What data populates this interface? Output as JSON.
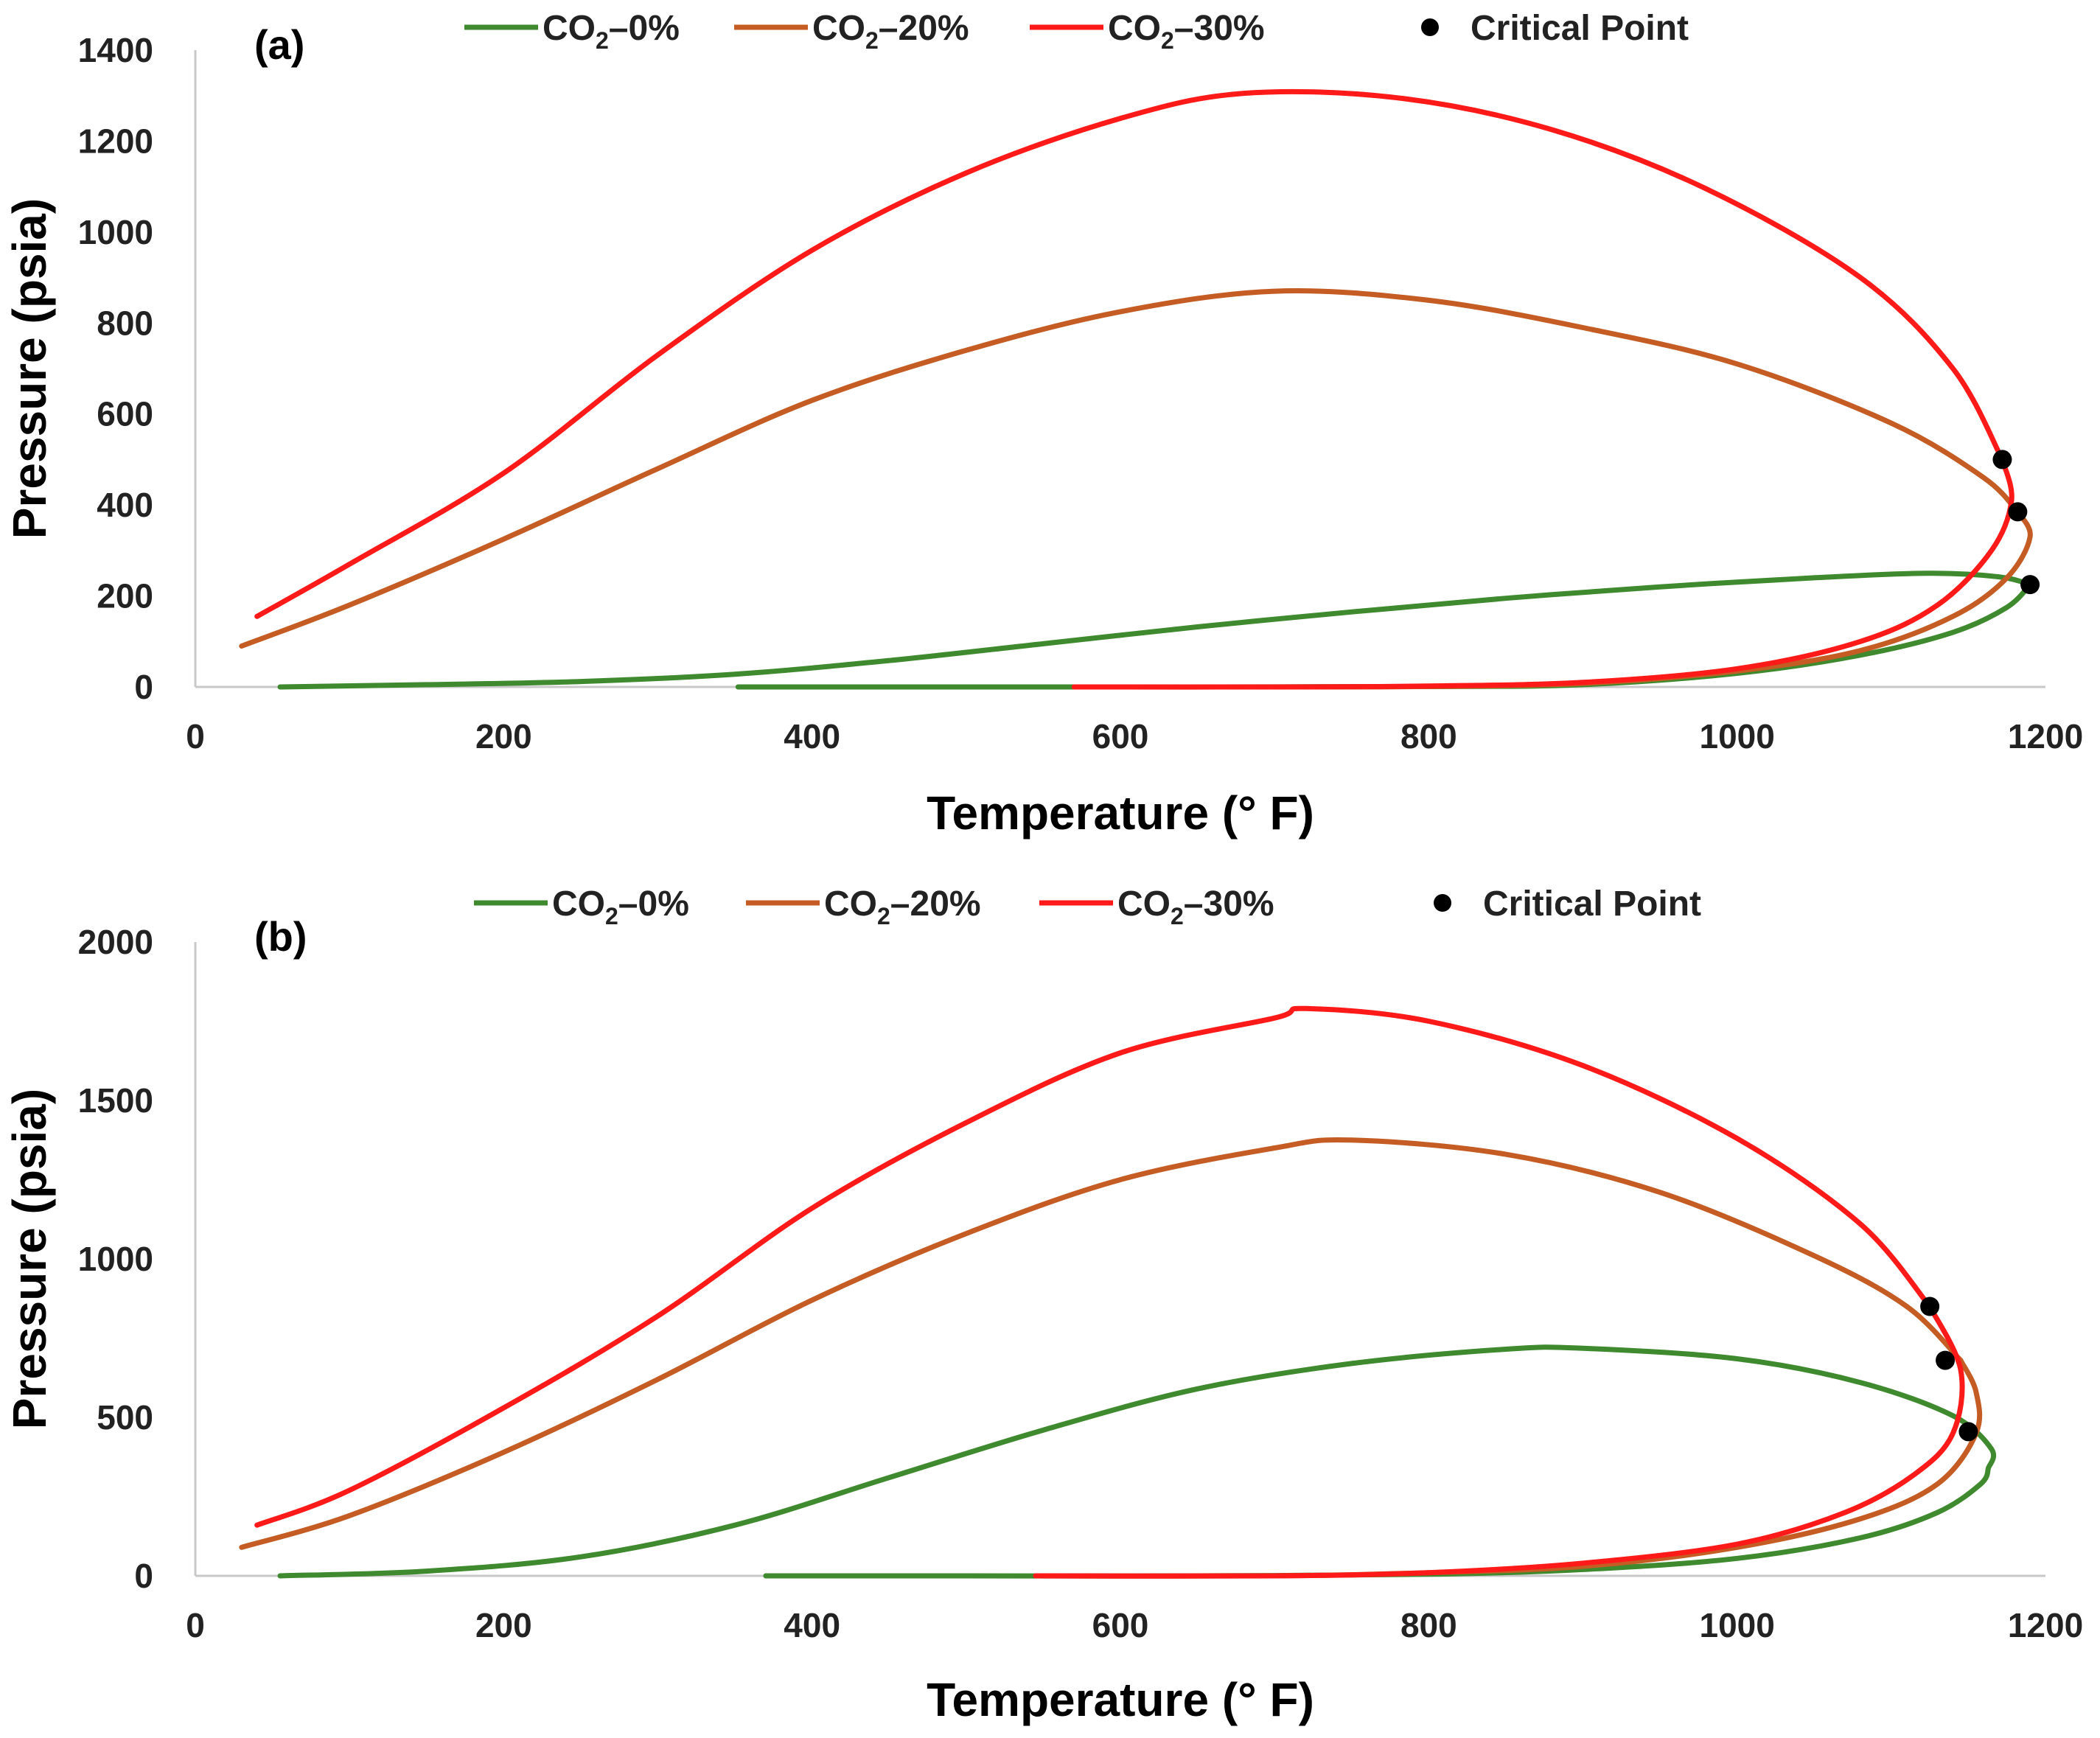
{
  "chart_data": [
    {
      "type": "line",
      "panel_label": "(a)",
      "xlabel": "Temperature (° F)",
      "ylabel": "Pressure (psia)",
      "xlim": [
        0,
        1200
      ],
      "ylim": [
        0,
        1400
      ],
      "x_ticks": [
        0,
        200,
        400,
        600,
        800,
        1000,
        1200
      ],
      "y_ticks": [
        0,
        200,
        400,
        600,
        800,
        1000,
        1200,
        1400
      ],
      "grid": false,
      "legend_position": "top-center",
      "colors": {
        "co2_0": "#3f8a2e",
        "co2_20": "#c45c24",
        "co2_30": "#ff1a1a",
        "critical": "#000000"
      },
      "legend": [
        {
          "key": "co2_0",
          "prefix": "CO",
          "sub": "2",
          "suffix": "–0%"
        },
        {
          "key": "co2_20",
          "prefix": "CO",
          "sub": "2",
          "suffix": "–20%"
        },
        {
          "key": "co2_30",
          "prefix": "CO",
          "sub": "2",
          "suffix": "–30%"
        },
        {
          "key": "critical",
          "prefix": "Critical Point",
          "sub": "",
          "suffix": ""
        }
      ],
      "series": [
        {
          "name": "CO2–0%",
          "key": "co2_0",
          "bubble": [
            [
              55,
              0
            ],
            [
              150,
              5
            ],
            [
              250,
              12
            ],
            [
              350,
              28
            ],
            [
              450,
              58
            ],
            [
              550,
              95
            ],
            [
              650,
              132
            ],
            [
              750,
              165
            ],
            [
              850,
              195
            ],
            [
              950,
              220
            ],
            [
              1050,
              240
            ],
            [
              1125,
              250
            ],
            [
              1170,
              242
            ],
            [
              1190,
              225
            ]
          ],
          "dew": [
            [
              352,
              0
            ],
            [
              500,
              0
            ],
            [
              650,
              0
            ],
            [
              800,
              1
            ],
            [
              900,
              5
            ],
            [
              1000,
              30
            ],
            [
              1080,
              70
            ],
            [
              1140,
              120
            ],
            [
              1175,
              175
            ],
            [
              1190,
              225
            ]
          ]
        },
        {
          "name": "CO2–20%",
          "key": "co2_20",
          "bubble": [
            [
              30,
              90
            ],
            [
              100,
              180
            ],
            [
              200,
              325
            ],
            [
              300,
              480
            ],
            [
              400,
              630
            ],
            [
              500,
              740
            ],
            [
              600,
              825
            ],
            [
              700,
              870
            ],
            [
              800,
              850
            ],
            [
              900,
              790
            ],
            [
              1000,
              710
            ],
            [
              1100,
              580
            ],
            [
              1160,
              460
            ],
            [
              1182,
              385
            ]
          ],
          "dew": [
            [
              570,
              0
            ],
            [
              700,
              0
            ],
            [
              800,
              1
            ],
            [
              900,
              8
            ],
            [
              1000,
              35
            ],
            [
              1080,
              80
            ],
            [
              1140,
              155
            ],
            [
              1175,
              240
            ],
            [
              1190,
              330
            ],
            [
              1182,
              385
            ]
          ]
        },
        {
          "name": "CO2–30%",
          "key": "co2_30",
          "bubble": [
            [
              40,
              155
            ],
            [
              100,
              270
            ],
            [
              200,
              470
            ],
            [
              300,
              730
            ],
            [
              400,
              960
            ],
            [
              500,
              1130
            ],
            [
              600,
              1250
            ],
            [
              680,
              1305
            ],
            [
              780,
              1295
            ],
            [
              880,
              1225
            ],
            [
              980,
              1095
            ],
            [
              1080,
              900
            ],
            [
              1140,
              700
            ],
            [
              1172,
              500
            ]
          ],
          "dew": [
            [
              570,
              0
            ],
            [
              700,
              0
            ],
            [
              800,
              2
            ],
            [
              900,
              10
            ],
            [
              1000,
              40
            ],
            [
              1080,
              100
            ],
            [
              1130,
              180
            ],
            [
              1165,
              300
            ],
            [
              1178,
              410
            ],
            [
              1172,
              500
            ]
          ]
        }
      ],
      "critical_points": [
        [
          1172,
          500
        ],
        [
          1182,
          385
        ],
        [
          1190,
          225
        ]
      ]
    },
    {
      "type": "line",
      "panel_label": "(b)",
      "xlabel": "Temperature (° F)",
      "ylabel": "Pressure (psia)",
      "xlim": [
        0,
        1200
      ],
      "ylim": [
        0,
        2000
      ],
      "x_ticks": [
        0,
        200,
        400,
        600,
        800,
        1000,
        1200
      ],
      "y_ticks": [
        0,
        500,
        1000,
        1500,
        2000
      ],
      "grid": false,
      "legend_position": "top-center",
      "colors": {
        "co2_0": "#3f8a2e",
        "co2_20": "#c45c24",
        "co2_30": "#ff1a1a",
        "critical": "#000000"
      },
      "legend": [
        {
          "key": "co2_0",
          "prefix": "CO",
          "sub": "2",
          "suffix": "–0%"
        },
        {
          "key": "co2_20",
          "prefix": "CO",
          "sub": "2",
          "suffix": "–20%"
        },
        {
          "key": "co2_30",
          "prefix": "CO",
          "sub": "2",
          "suffix": "–30%"
        },
        {
          "key": "critical",
          "prefix": "Critical Point",
          "sub": "",
          "suffix": ""
        }
      ],
      "series": [
        {
          "name": "CO2–0%",
          "key": "co2_0",
          "bubble": [
            [
              55,
              0
            ],
            [
              150,
              15
            ],
            [
              250,
              60
            ],
            [
              350,
              160
            ],
            [
              450,
              310
            ],
            [
              550,
              460
            ],
            [
              650,
              590
            ],
            [
              750,
              670
            ],
            [
              850,
              715
            ],
            [
              900,
              718
            ],
            [
              1000,
              685
            ],
            [
              1080,
              610
            ],
            [
              1140,
              505
            ],
            [
              1165,
              400
            ],
            [
              1163,
              340
            ]
          ],
          "dew": [
            [
              370,
              0
            ],
            [
              500,
              0
            ],
            [
              650,
              0
            ],
            [
              800,
              5
            ],
            [
              900,
              20
            ],
            [
              1000,
              55
            ],
            [
              1080,
              120
            ],
            [
              1130,
              200
            ],
            [
              1158,
              290
            ],
            [
              1163,
              340
            ]
          ]
        },
        {
          "name": "CO2–20%",
          "key": "co2_20",
          "bubble": [
            [
              30,
              90
            ],
            [
              100,
              190
            ],
            [
              200,
              390
            ],
            [
              300,
              620
            ],
            [
              400,
              870
            ],
            [
              500,
              1080
            ],
            [
              600,
              1250
            ],
            [
              700,
              1350
            ],
            [
              750,
              1375
            ],
            [
              850,
              1330
            ],
            [
              950,
              1210
            ],
            [
              1050,
              1010
            ],
            [
              1110,
              850
            ],
            [
              1145,
              680
            ]
          ],
          "dew": [
            [
              545,
              0
            ],
            [
              700,
              0
            ],
            [
              800,
              10
            ],
            [
              900,
              30
            ],
            [
              1000,
              90
            ],
            [
              1080,
              180
            ],
            [
              1130,
              290
            ],
            [
              1155,
              450
            ],
            [
              1155,
              580
            ],
            [
              1145,
              680
            ]
          ]
        },
        {
          "name": "CO2–30%",
          "key": "co2_30",
          "bubble": [
            [
              40,
              160
            ],
            [
              100,
              270
            ],
            [
              200,
              530
            ],
            [
              300,
              820
            ],
            [
              400,
              1160
            ],
            [
              500,
              1430
            ],
            [
              600,
              1650
            ],
            [
              700,
              1760
            ],
            [
              720,
              1790
            ],
            [
              800,
              1750
            ],
            [
              900,
              1610
            ],
            [
              1000,
              1380
            ],
            [
              1080,
              1110
            ],
            [
              1125,
              850
            ]
          ],
          "dew": [
            [
              545,
              0
            ],
            [
              700,
              0
            ],
            [
              800,
              10
            ],
            [
              900,
              40
            ],
            [
              1000,
              100
            ],
            [
              1070,
              200
            ],
            [
              1115,
              320
            ],
            [
              1140,
              450
            ],
            [
              1145,
              650
            ],
            [
              1125,
              850
            ]
          ]
        }
      ],
      "critical_points": [
        [
          1125,
          850
        ],
        [
          1135,
          680
        ],
        [
          1150,
          455
        ]
      ]
    }
  ]
}
